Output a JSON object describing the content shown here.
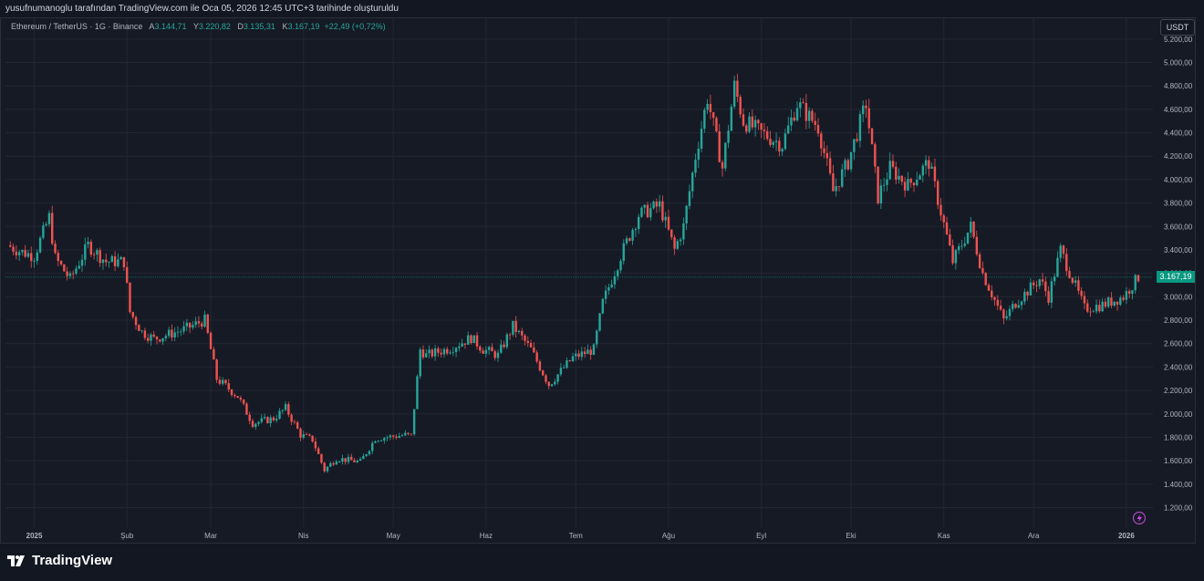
{
  "header": {
    "attribution": "yusufnumanoglu tarafından TradingView.com ile Oca 05, 2026 12:45 UTC+3 tarihinde oluşturuldu"
  },
  "legend": {
    "symbol": "Ethereum / TetherUS · 1G · Binance",
    "open_label": "A",
    "open": "3.144,71",
    "high_label": "Y",
    "high": "3.220,82",
    "low_label": "D",
    "low": "3.135,31",
    "close_label": "K",
    "close": "3.167,19",
    "change": "+22,49 (+0,72%)"
  },
  "currency": "USDT",
  "last_price_label": "3.167,19",
  "brand": {
    "name": "TradingView"
  },
  "colors": {
    "up": "#26a69a",
    "down": "#ef5350",
    "background": "#161a25",
    "grid": "#232733",
    "accent": "#089981"
  },
  "chart_data": {
    "type": "candlestick",
    "y_range": [
      1150,
      5250
    ],
    "y_ticks": [
      1200,
      1400,
      1600,
      1800,
      2000,
      2200,
      2400,
      2600,
      2800,
      3000,
      3200,
      3400,
      3600,
      3800,
      4000,
      4200,
      4400,
      4600,
      4800,
      5000,
      5200
    ],
    "y_tick_labels": [
      "1.200,00",
      "1.400,00",
      "1.600,00",
      "1.800,00",
      "2.000,00",
      "2.200,00",
      "2.400,00",
      "2.600,00",
      "2.800,00",
      "3.000,00",
      "3.200,00",
      "3.400,00",
      "3.600,00",
      "3.800,00",
      "4.000,00",
      "4.200,00",
      "4.400,00",
      "4.600,00",
      "4.800,00",
      "5.000,00",
      "5.200,00"
    ],
    "x_start": "2024-12-23",
    "x_end": "2026-01-05",
    "x_ticks": [
      {
        "date": "2025-01-01",
        "label": "2025",
        "bold": true
      },
      {
        "date": "2025-02-01",
        "label": "Şub"
      },
      {
        "date": "2025-03-01",
        "label": "Mar"
      },
      {
        "date": "2025-04-01",
        "label": "Nis"
      },
      {
        "date": "2025-05-01",
        "label": "May"
      },
      {
        "date": "2025-06-01",
        "label": "Haz"
      },
      {
        "date": "2025-07-01",
        "label": "Tem"
      },
      {
        "date": "2025-08-01",
        "label": "Ağu"
      },
      {
        "date": "2025-09-01",
        "label": "Eyl"
      },
      {
        "date": "2025-10-01",
        "label": "Eki"
      },
      {
        "date": "2025-11-01",
        "label": "Kas"
      },
      {
        "date": "2025-12-01",
        "label": "Ara"
      },
      {
        "date": "2026-01-01",
        "label": "2026",
        "bold": true
      }
    ],
    "last_price": 3167.19,
    "close_series": [
      [
        "2024-12-23",
        3440
      ],
      [
        "2024-12-28",
        3380
      ],
      [
        "2025-01-01",
        3350
      ],
      [
        "2025-01-06",
        3680
      ],
      [
        "2025-01-08",
        3330
      ],
      [
        "2025-01-13",
        3150
      ],
      [
        "2025-01-19",
        3440
      ],
      [
        "2025-01-25",
        3300
      ],
      [
        "2025-01-31",
        3300
      ],
      [
        "2025-02-02",
        2870
      ],
      [
        "2025-02-06",
        2700
      ],
      [
        "2025-02-10",
        2640
      ],
      [
        "2025-02-20",
        2720
      ],
      [
        "2025-02-27",
        2800
      ],
      [
        "2025-03-03",
        2300
      ],
      [
        "2025-03-10",
        2150
      ],
      [
        "2025-03-15",
        1920
      ],
      [
        "2025-03-22",
        1960
      ],
      [
        "2025-03-26",
        2050
      ],
      [
        "2025-03-31",
        1820
      ],
      [
        "2025-04-04",
        1780
      ],
      [
        "2025-04-08",
        1520
      ],
      [
        "2025-04-12",
        1620
      ],
      [
        "2025-04-20",
        1590
      ],
      [
        "2025-04-25",
        1790
      ],
      [
        "2025-05-05",
        1820
      ],
      [
        "2025-05-07",
        1810
      ],
      [
        "2025-05-10",
        2550
      ],
      [
        "2025-05-12",
        2500
      ],
      [
        "2025-05-20",
        2560
      ],
      [
        "2025-05-27",
        2650
      ],
      [
        "2025-05-31",
        2550
      ],
      [
        "2025-06-05",
        2500
      ],
      [
        "2025-06-10",
        2750
      ],
      [
        "2025-06-16",
        2550
      ],
      [
        "2025-06-22",
        2250
      ],
      [
        "2025-06-30",
        2480
      ],
      [
        "2025-07-07",
        2550
      ],
      [
        "2025-07-10",
        2950
      ],
      [
        "2025-07-16",
        3350
      ],
      [
        "2025-07-22",
        3700
      ],
      [
        "2025-07-29",
        3780
      ],
      [
        "2025-08-03",
        3400
      ],
      [
        "2025-08-06",
        3600
      ],
      [
        "2025-08-10",
        4200
      ],
      [
        "2025-08-14",
        4700
      ],
      [
        "2025-08-19",
        4100
      ],
      [
        "2025-08-23",
        4800
      ],
      [
        "2025-08-26",
        4500
      ],
      [
        "2025-09-01",
        4400
      ],
      [
        "2025-09-08",
        4300
      ],
      [
        "2025-09-13",
        4650
      ],
      [
        "2025-09-20",
        4450
      ],
      [
        "2025-09-25",
        3900
      ],
      [
        "2025-09-30",
        4150
      ],
      [
        "2025-10-06",
        4650
      ],
      [
        "2025-10-10",
        3850
      ],
      [
        "2025-10-14",
        4100
      ],
      [
        "2025-10-20",
        3950
      ],
      [
        "2025-10-27",
        4150
      ],
      [
        "2025-11-04",
        3300
      ],
      [
        "2025-11-10",
        3600
      ],
      [
        "2025-11-14",
        3200
      ],
      [
        "2025-11-21",
        2800
      ],
      [
        "2025-11-25",
        2950
      ],
      [
        "2025-12-03",
        3150
      ],
      [
        "2025-12-06",
        3000
      ],
      [
        "2025-12-10",
        3400
      ],
      [
        "2025-12-18",
        2900
      ],
      [
        "2025-12-24",
        2930
      ],
      [
        "2025-12-31",
        3000
      ],
      [
        "2026-01-05",
        3167
      ]
    ]
  }
}
